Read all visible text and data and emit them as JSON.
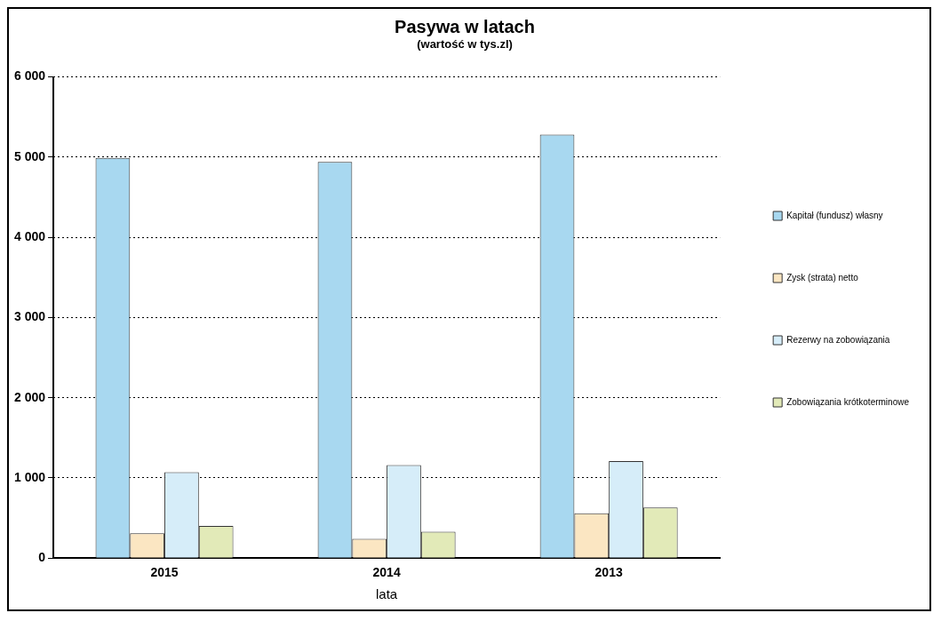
{
  "chart_data": {
    "type": "bar",
    "title": "Pasywa w latach",
    "subtitle": "(wartość w tys.zl)",
    "xlabel": "lata",
    "categories": [
      "2015",
      "2014",
      "2013"
    ],
    "series": [
      {
        "name": "Kapitał (fundusz) własny",
        "color": "#a8d8f0",
        "values": [
          4990,
          4940,
          5280
        ]
      },
      {
        "name": "Zysk (strata) netto",
        "color": "#fbe6c2",
        "values": [
          310,
          240,
          560
        ]
      },
      {
        "name": "Rezerwy na zobowiązania",
        "color": "#d6edf9",
        "values": [
          1070,
          1160,
          1210
        ]
      },
      {
        "name": "Zobowiązania krótkoterminowe",
        "color": "#e2eab8",
        "values": [
          400,
          330,
          630
        ]
      }
    ],
    "ylim": [
      0,
      6000
    ],
    "yticks": [
      0,
      {
        "value": 1000,
        "label": "1 000"
      },
      {
        "value": 2000,
        "label": "2 000"
      },
      {
        "value": 3000,
        "label": "3 000"
      },
      {
        "value": 4000,
        "label": "4 000"
      },
      {
        "value": 5000,
        "label": "5 000"
      },
      {
        "value": 6000,
        "label": "6 000"
      }
    ],
    "grid": "y",
    "legend": "right"
  }
}
